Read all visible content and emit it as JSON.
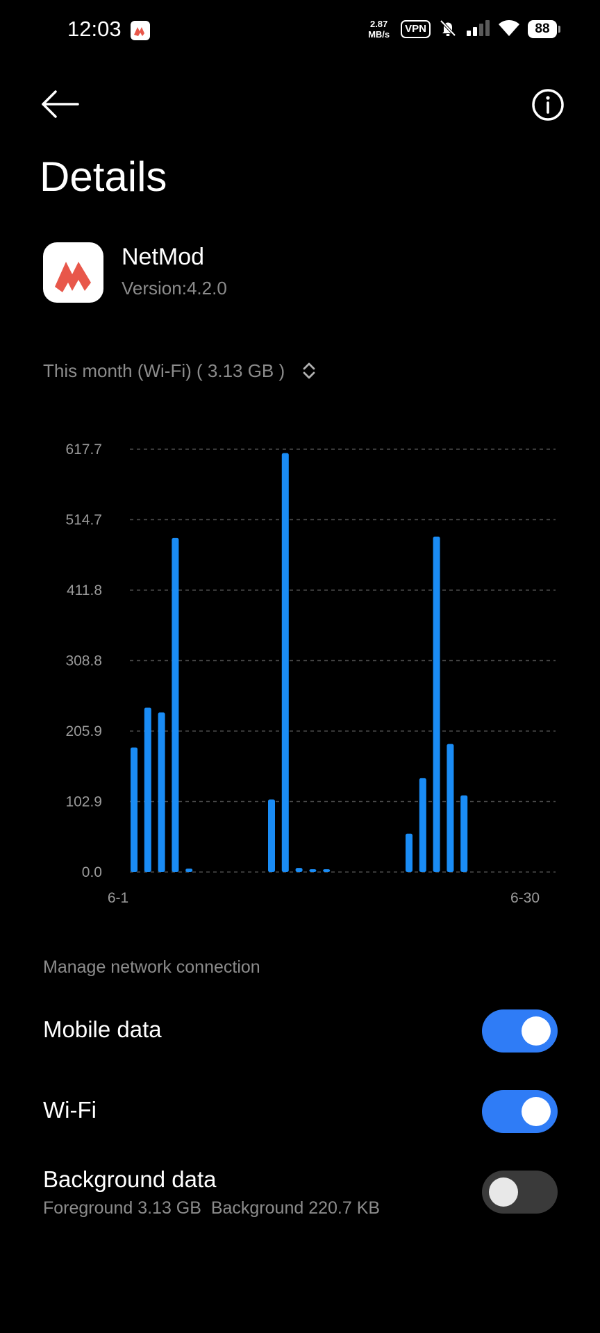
{
  "status_bar": {
    "time": "12:03",
    "speed_value": "2.87",
    "speed_unit": "MB/s",
    "vpn_label": "VPN",
    "battery": "88",
    "icons": [
      "app-notification-icon",
      "bell-muted-icon",
      "signal-icon",
      "wifi-icon",
      "battery-icon"
    ]
  },
  "top_bar": {
    "back_icon": "arrow-left-icon",
    "info_icon": "info-icon"
  },
  "page": {
    "title": "Details"
  },
  "app": {
    "name": "NetMod",
    "version": "Version:4.2.0",
    "icon": "netmod-logo-icon",
    "logo_color": "#e8574a"
  },
  "period": {
    "label": "This month (Wi-Fi) ( 3.13 GB )",
    "icon": "chevron-up-down-icon"
  },
  "chart_data": {
    "type": "bar",
    "title": "",
    "xlabel": "",
    "ylabel": "",
    "ylim": [
      0,
      617.7
    ],
    "yticks": [
      "617.7",
      "514.7",
      "411.8",
      "308.8",
      "205.9",
      "102.9",
      "0.0"
    ],
    "ytick_values": [
      617.7,
      514.7,
      411.8,
      308.8,
      205.9,
      102.9,
      0.0
    ],
    "x_start_label": "6-1",
    "x_end_label": "6-30",
    "days": [
      1,
      2,
      3,
      4,
      5,
      6,
      7,
      8,
      9,
      10,
      11,
      12,
      13,
      14,
      15,
      16,
      17,
      18,
      19,
      20,
      21,
      22,
      23,
      24,
      25,
      26,
      27,
      28,
      29,
      30
    ],
    "values": [
      182,
      240,
      233,
      488,
      5,
      0,
      0,
      0,
      0,
      0,
      106,
      612,
      6,
      4,
      4,
      0,
      0,
      0,
      0,
      0,
      56,
      137,
      490,
      187,
      112,
      0,
      0,
      0,
      0,
      0
    ],
    "bar_color": "#1a8cf5",
    "grid": true
  },
  "network": {
    "section_label": "Manage network connection",
    "rows": [
      {
        "label": "Mobile data",
        "enabled": true
      },
      {
        "label": "Wi-Fi",
        "enabled": true
      },
      {
        "label": "Background data",
        "enabled": false,
        "sub_foreground": "Foreground 3.13 GB",
        "sub_background": "Background 220.7 KB"
      }
    ],
    "accent": "#2f7cf6"
  }
}
